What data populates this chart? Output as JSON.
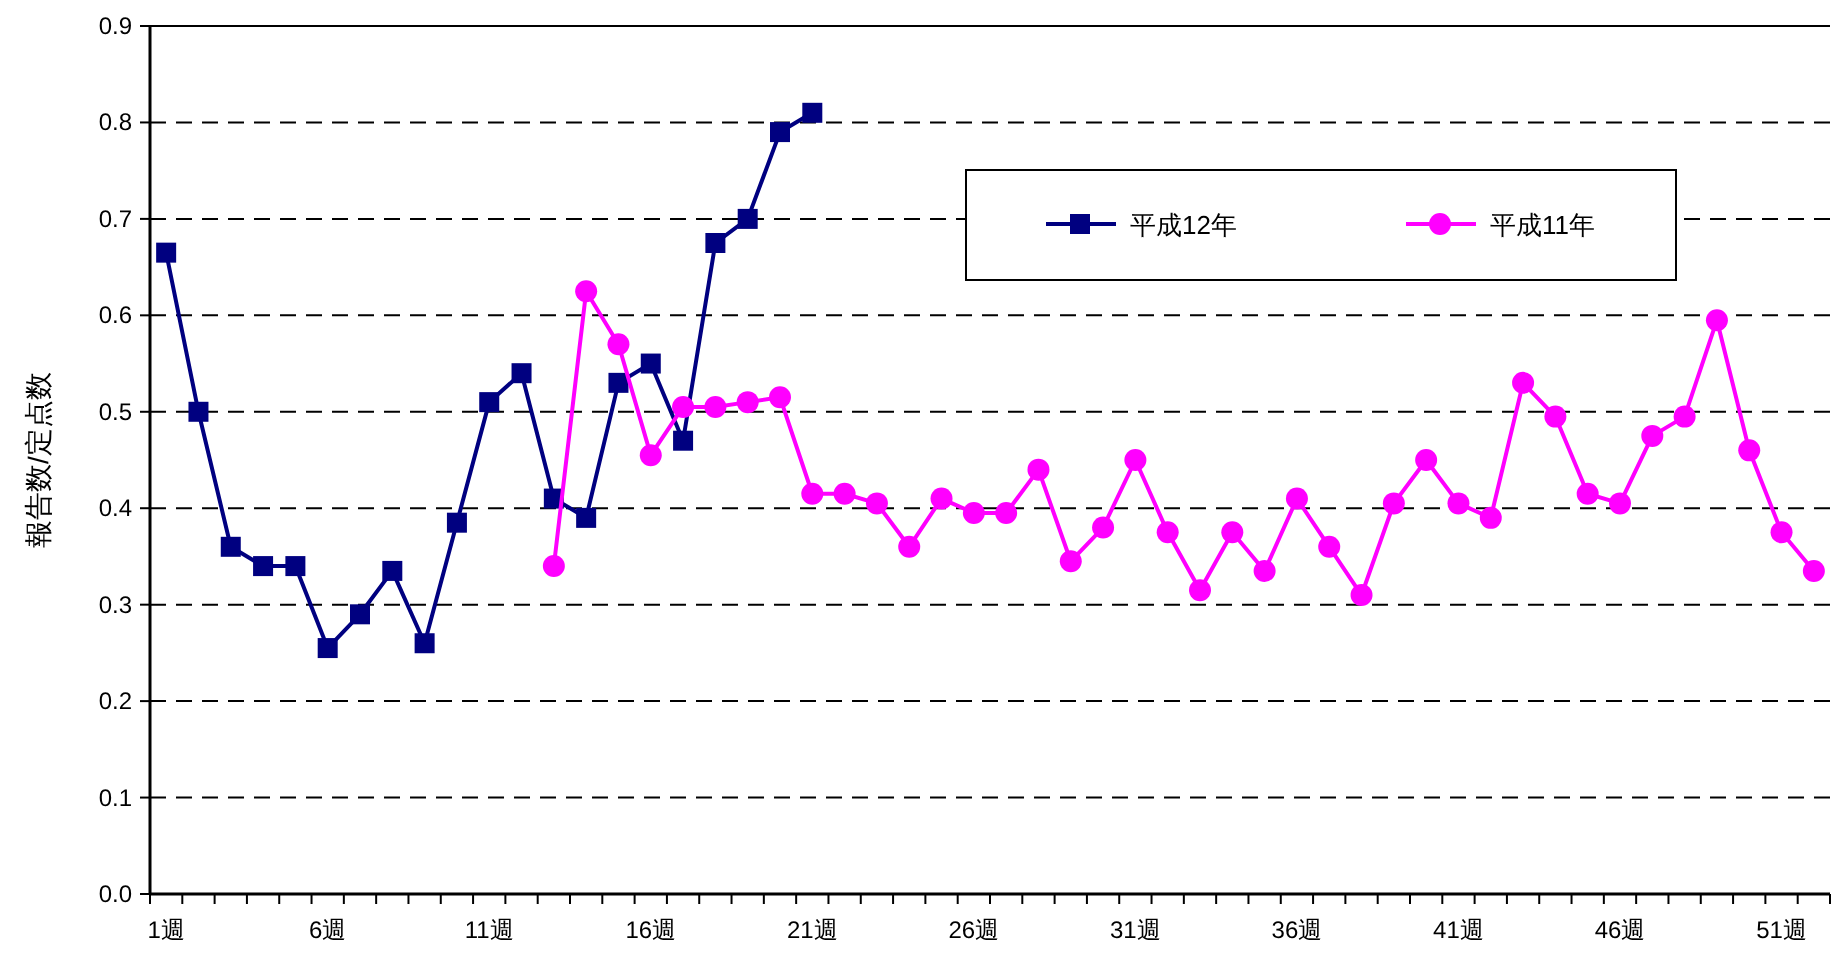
{
  "chart_data": {
    "type": "line",
    "ylabel": "報告数/定点数",
    "categories": [
      "1週",
      null,
      null,
      null,
      null,
      "6週",
      null,
      null,
      null,
      null,
      "11週",
      null,
      null,
      null,
      null,
      "16週",
      null,
      null,
      null,
      null,
      "21週",
      null,
      null,
      null,
      null,
      "26週",
      null,
      null,
      null,
      null,
      "31週",
      null,
      null,
      null,
      null,
      "36週",
      null,
      null,
      null,
      null,
      "41週",
      null,
      null,
      null,
      null,
      "46週",
      null,
      null,
      null,
      null,
      "51週",
      null
    ],
    "series": [
      {
        "name": "平成12年",
        "color": "#000080",
        "marker": "square",
        "values": [
          0.665,
          0.5,
          0.36,
          0.34,
          0.34,
          0.255,
          0.29,
          0.335,
          0.26,
          0.385,
          0.51,
          0.54,
          0.41,
          0.39,
          0.53,
          0.55,
          0.47,
          0.675,
          0.7,
          0.79,
          0.81,
          null,
          null,
          null,
          null,
          null,
          null,
          null,
          null,
          null,
          null,
          null,
          null,
          null,
          null,
          null,
          null,
          null,
          null,
          null,
          null,
          null,
          null,
          null,
          null,
          null,
          null,
          null,
          null,
          null,
          null,
          null
        ]
      },
      {
        "name": "平成11年",
        "color": "#ff00ff",
        "marker": "circle",
        "values": [
          null,
          null,
          null,
          null,
          null,
          null,
          null,
          null,
          null,
          null,
          null,
          null,
          0.34,
          0.625,
          0.57,
          0.455,
          0.505,
          0.505,
          0.51,
          0.515,
          0.415,
          0.415,
          0.405,
          0.36,
          0.41,
          0.395,
          0.395,
          0.44,
          0.345,
          0.38,
          0.45,
          0.375,
          0.315,
          0.375,
          0.335,
          0.41,
          0.36,
          0.31,
          0.405,
          0.45,
          0.405,
          0.39,
          0.53,
          0.495,
          0.415,
          0.405,
          0.475,
          0.495,
          0.595,
          0.46,
          0.375,
          0.335
        ]
      }
    ],
    "ylim": [
      0,
      0.9
    ],
    "yticks": [
      {
        "value": 0,
        "label": "0.0"
      },
      {
        "value": 0.1,
        "label": "0.1"
      },
      {
        "value": 0.2,
        "label": "0.2"
      },
      {
        "value": 0.3,
        "label": "0.3"
      },
      {
        "value": 0.4,
        "label": "0.4"
      },
      {
        "value": 0.5,
        "label": "0.5"
      },
      {
        "value": 0.6,
        "label": "0.6"
      },
      {
        "value": 0.7,
        "label": "0.7"
      },
      {
        "value": 0.8,
        "label": "0.8"
      },
      {
        "value": 0.9,
        "label": "0.9"
      }
    ],
    "grid": "y",
    "legend": "top right",
    "line_style": "solid"
  }
}
